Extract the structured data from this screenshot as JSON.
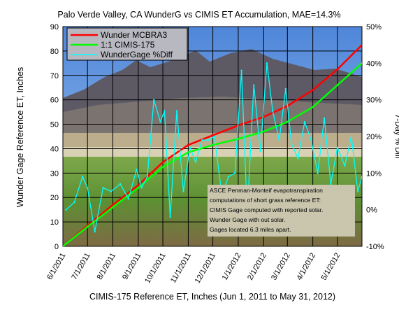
{
  "chart_data": {
    "type": "line",
    "title": "Palo Verde Valley, CA WunderG vs CIMIS  ET Accumulation, MAE=14.3%",
    "xlabel": "CIMIS-175 Reference ET, Inches (Jun 1, 2011 to May 31, 2012)",
    "ylabel": "Wunder Gage Reference ET, Inches",
    "y2label": "7-Day % Diff",
    "x_range": [
      "2011-06-01",
      "2012-05-31"
    ],
    "ylim": [
      0,
      90
    ],
    "y2lim": [
      -10,
      50
    ],
    "y_ticks": [
      "0",
      "10",
      "20",
      "30",
      "40",
      "50",
      "60",
      "70",
      "80",
      "90"
    ],
    "y2_ticks": [
      "-10%",
      "0%",
      "10%",
      "20%",
      "30%",
      "40%",
      "50%"
    ],
    "x_ticks": [
      {
        "date": "2011-06-01",
        "label": "6/1/2011"
      },
      {
        "date": "2011-07-01",
        "label": "7/1/2011"
      },
      {
        "date": "2011-08-01",
        "label": "8/1/2011"
      },
      {
        "date": "2011-09-01",
        "label": "9/1/2011"
      },
      {
        "date": "2011-10-01",
        "label": "10/1/2011"
      },
      {
        "date": "2011-11-01",
        "label": "11/1/2011"
      },
      {
        "date": "2011-12-01",
        "label": "12/1/2011"
      },
      {
        "date": "2012-01-01",
        "label": "1/1/2012"
      },
      {
        "date": "2012-02-01",
        "label": "2/1/2012"
      },
      {
        "date": "2012-03-01",
        "label": "3/1/2012"
      },
      {
        "date": "2012-04-01",
        "label": "4/1/2012"
      },
      {
        "date": "2012-05-01",
        "label": "5/1/2012"
      }
    ],
    "grid": true,
    "legend_position": "top-left",
    "background": "photograph of desert mountains over green farm fields",
    "series": [
      {
        "name": "Wunder MCBRA3",
        "axis": "left",
        "color": "#ff0000",
        "x": [
          "2011-06-01",
          "2011-07-01",
          "2011-08-01",
          "2011-09-01",
          "2011-10-01",
          "2011-11-01",
          "2011-12-01",
          "2012-01-01",
          "2012-02-01",
          "2012-03-01",
          "2012-04-01",
          "2012-05-01",
          "2012-05-31"
        ],
        "y": [
          0,
          8.5,
          17,
          25,
          34.5,
          41.5,
          45.5,
          49.5,
          53,
          57.5,
          64,
          72.5,
          82.5
        ]
      },
      {
        "name": "1:1 CIMIS-175",
        "axis": "left",
        "color": "#00ff00",
        "x": [
          "2011-06-01",
          "2011-07-01",
          "2011-08-01",
          "2011-09-01",
          "2011-10-01",
          "2011-11-01",
          "2011-12-01",
          "2012-01-01",
          "2012-02-01",
          "2012-03-01",
          "2012-04-01",
          "2012-05-01",
          "2012-05-31"
        ],
        "y": [
          0,
          8,
          16,
          24,
          32.5,
          38.5,
          41.5,
          44,
          47,
          51,
          57,
          66,
          75
        ]
      },
      {
        "name": "WunderGage %Diff",
        "axis": "right",
        "color": "#00ffff",
        "x": [
          "2011-06-05",
          "2011-06-15",
          "2011-06-25",
          "2011-07-01",
          "2011-07-10",
          "2011-07-20",
          "2011-07-30",
          "2011-08-10",
          "2011-08-20",
          "2011-08-30",
          "2011-09-05",
          "2011-09-12",
          "2011-09-20",
          "2011-09-28",
          "2011-10-03",
          "2011-10-10",
          "2011-10-18",
          "2011-10-26",
          "2011-11-03",
          "2011-11-10",
          "2011-11-18",
          "2011-11-26",
          "2011-12-03",
          "2011-12-12",
          "2011-12-20",
          "2011-12-28",
          "2012-01-05",
          "2012-01-12",
          "2012-01-20",
          "2012-01-28",
          "2012-02-05",
          "2012-02-12",
          "2012-02-20",
          "2012-02-28",
          "2012-03-06",
          "2012-03-14",
          "2012-03-22",
          "2012-03-30",
          "2012-04-07",
          "2012-04-15",
          "2012-04-23",
          "2012-05-01",
          "2012-05-10",
          "2012-05-18",
          "2012-05-26",
          "2012-05-31"
        ],
        "y": [
          0,
          2,
          9,
          6,
          -6,
          6,
          5,
          7,
          3,
          11,
          6,
          9,
          30,
          24,
          27,
          -2,
          27,
          5,
          17,
          13,
          19,
          19,
          20,
          4,
          9,
          10,
          38,
          -1,
          34,
          16,
          40,
          27,
          19,
          33,
          18,
          14,
          24,
          19,
          10,
          25,
          7,
          17,
          12,
          20,
          5,
          9
        ]
      }
    ]
  },
  "annotation_lines": [
    "ASCE Penman-Monteif evapotranspiration",
    "computations of short grass reference ET:",
    "CIMIS Gage computed with reported solar.",
    "Wunder Gage with out solar.",
    "Gages located 6.3 miles apart."
  ]
}
